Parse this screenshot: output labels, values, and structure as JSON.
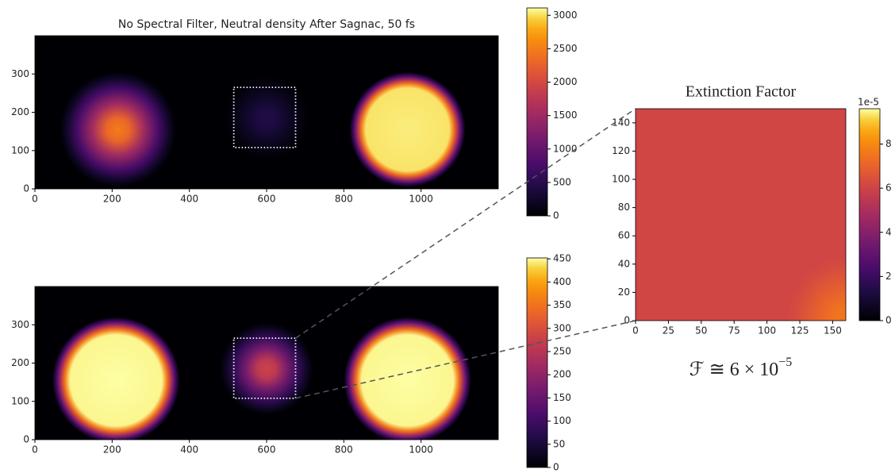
{
  "chart_data": [
    {
      "type": "heatmap",
      "title": "No Spectral Filter, Neutral density After Sagnac, 50 fs",
      "colormap": "inferno",
      "xlim": [
        0,
        1200
      ],
      "ylim": [
        0,
        400
      ],
      "xticks": [
        0,
        200,
        400,
        600,
        800,
        1000
      ],
      "yticks": [
        0,
        100,
        200,
        300
      ],
      "background": 0,
      "spots": [
        {
          "x": 215,
          "y": 155,
          "r": 150,
          "peak": 2500
        },
        {
          "x": 600,
          "y": 185,
          "r": 110,
          "peak": 450
        },
        {
          "x": 965,
          "y": 155,
          "r": 150,
          "peak": 3050
        }
      ],
      "roi": {
        "x": [
          515,
          675
        ],
        "y": [
          108,
          265
        ]
      },
      "colorbar": {
        "lim": [
          0,
          3110
        ],
        "ticks": [
          0,
          500,
          1000,
          1500,
          2000,
          2500,
          3000
        ]
      }
    },
    {
      "type": "heatmap",
      "colormap": "inferno",
      "xlim": [
        0,
        1200
      ],
      "ylim": [
        0,
        400
      ],
      "xticks": [
        0,
        200,
        400,
        600,
        800,
        1000
      ],
      "yticks": [
        0,
        100,
        200,
        300
      ],
      "background": 0,
      "spots": [
        {
          "x": 210,
          "y": 155,
          "r": 165,
          "peak": 452
        },
        {
          "x": 600,
          "y": 185,
          "r": 120,
          "peak": 280
        },
        {
          "x": 965,
          "y": 155,
          "r": 165,
          "peak": 452
        }
      ],
      "roi": {
        "x": [
          515,
          675
        ],
        "y": [
          108,
          265
        ]
      },
      "colorbar": {
        "lim": [
          0,
          452
        ],
        "ticks": [
          0,
          50,
          100,
          150,
          200,
          250,
          300,
          350,
          400,
          450
        ]
      }
    },
    {
      "type": "heatmap",
      "title": "Extinction Factor",
      "colormap": "inferno",
      "xlim": [
        0,
        160
      ],
      "ylim": [
        0,
        150
      ],
      "xticks": [
        0,
        25,
        50,
        75,
        100,
        125,
        150
      ],
      "yticks": [
        0,
        20,
        40,
        60,
        80,
        100,
        120,
        140
      ],
      "background": 6.1,
      "spots": [
        {
          "x": 160,
          "y": 0,
          "r": 45,
          "peak": 7.6
        }
      ],
      "colorbar": {
        "lim": [
          0,
          9.6
        ],
        "ticks": [
          0,
          2,
          4,
          6,
          8
        ],
        "offset_label": "1e-5"
      },
      "annotation": {
        "text": "ℱ ≅ 6 × 10",
        "superscript": "−5"
      }
    }
  ]
}
